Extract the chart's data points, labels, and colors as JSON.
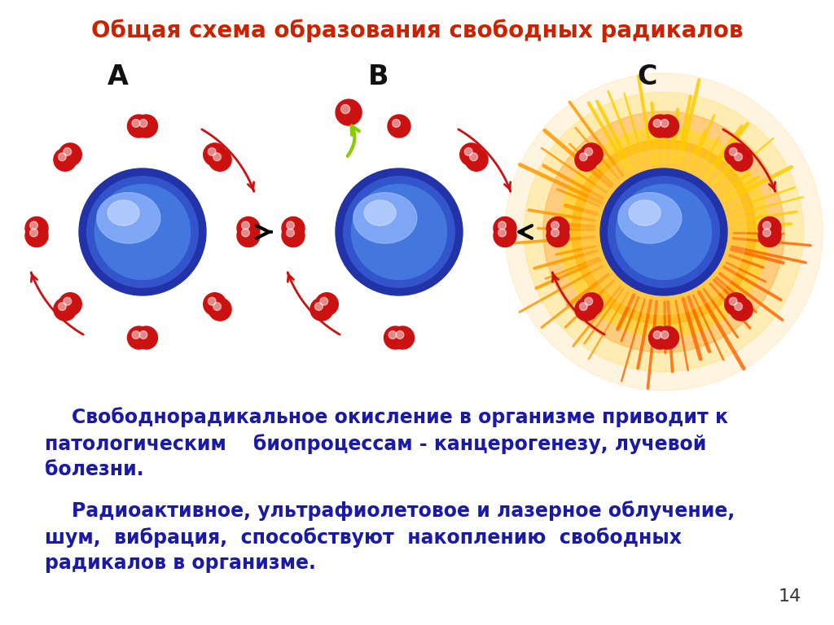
{
  "title": "Общая схема образования свободных радикалов",
  "title_color": "#cc2200",
  "title_fontsize": 20,
  "body_text_1": "    Свободнорадикальное окисление в организме приводит к\nпатологическим    биопроцессам - канцерогенезу, лучевой\nболезни.",
  "body_text_2": "    Радиоактивное, ультрафиолетовое и лазерное облучение,\nшум,  вибрация,  способствуют  накоплению  свободных\nрадикалов в организме.",
  "body_text_color": "#1a1aaa",
  "body_fontsize": 17,
  "page_number": "14",
  "background_color": "#ffffff",
  "labels": [
    "A",
    "B",
    "C"
  ],
  "label_fontsize": 24,
  "label_color": "#111111"
}
